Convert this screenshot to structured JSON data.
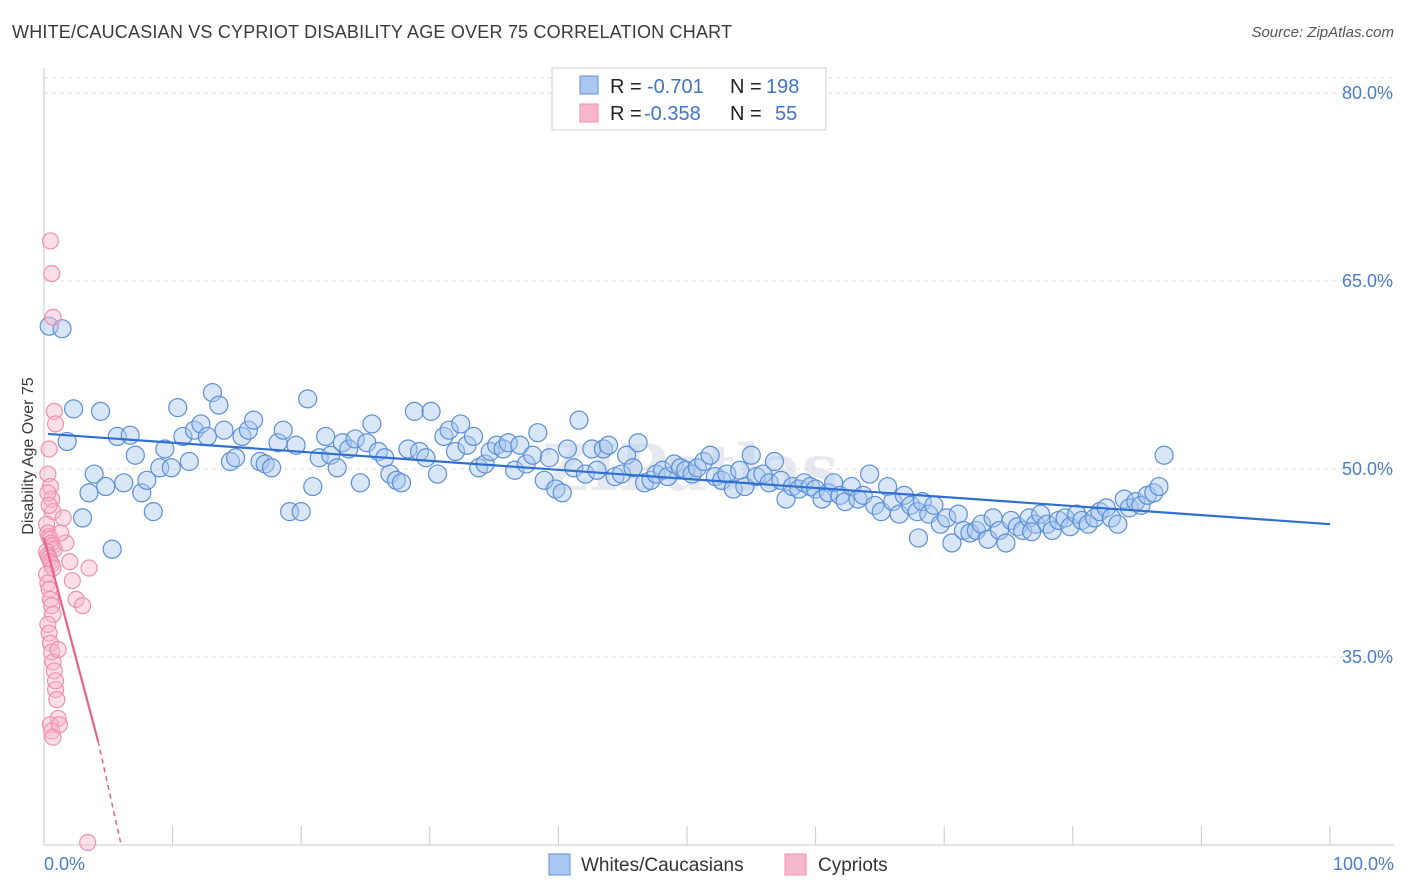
{
  "header": {
    "title": "WHITE/CAUCASIAN VS CYPRIOT DISABILITY AGE OVER 75 CORRELATION CHART",
    "source": "Source: ZipAtlas.com"
  },
  "watermark": "ZIPatlas",
  "chart_data": {
    "type": "scatter",
    "title": "WHITE/CAUCASIAN VS CYPRIOT DISABILITY AGE OVER 75 CORRELATION CHART",
    "xlabel": "",
    "ylabel": "Disability Age Over 75",
    "xlim": [
      0,
      100
    ],
    "ylim": [
      20,
      82
    ],
    "x_tick_labels": [
      {
        "value": 0,
        "label": "0.0%"
      },
      {
        "value": 100,
        "label": "100.0%"
      }
    ],
    "x_minor_ticks": [
      10,
      20,
      30,
      40,
      50,
      60,
      70,
      80,
      90,
      100
    ],
    "y_tick_labels": [
      {
        "value": 80,
        "label": "80.0%"
      },
      {
        "value": 65,
        "label": "65.0%"
      },
      {
        "value": 50,
        "label": "50.0%"
      },
      {
        "value": 35,
        "label": "35.0%"
      }
    ],
    "gridlines": [
      80,
      65,
      50,
      35
    ],
    "legend": {
      "position": "top-center",
      "entries": [
        {
          "series": "Whites/Caucasians",
          "r_label": "R =",
          "r_value": "-0.701",
          "n_label": "N =",
          "n_value": "198"
        },
        {
          "series": "Cypriots",
          "r_label": "R =",
          "r_value": "-0.358",
          "n_label": "N =",
          "n_value": "55"
        }
      ]
    },
    "colors": {
      "white_fill": "#a9c8f0",
      "white_stroke": "#5b8fd6",
      "white_line": "#2f6fd0",
      "cypriot_fill": "#f7b8cc",
      "cypriot_stroke": "#ef8fb0",
      "cypriot_line": "#e8608c",
      "tick_label": "#4a7cc7",
      "grid": "#dcdcdc"
    },
    "series": [
      {
        "name": "Whites/Caucasians",
        "trend": {
          "x1": 0.3,
          "y1": 52.8,
          "x2": 100,
          "y2": 45.6
        },
        "points": [
          [
            0.4,
            61.4
          ],
          [
            1.4,
            61.2
          ],
          [
            1.8,
            52.2
          ],
          [
            2.3,
            54.8
          ],
          [
            3.0,
            46.1
          ],
          [
            3.5,
            48.1
          ],
          [
            3.9,
            49.6
          ],
          [
            4.4,
            54.6
          ],
          [
            4.8,
            48.6
          ],
          [
            5.3,
            43.6
          ],
          [
            5.7,
            52.6
          ],
          [
            6.2,
            48.9
          ],
          [
            6.7,
            52.7
          ],
          [
            7.1,
            51.1
          ],
          [
            7.6,
            48.1
          ],
          [
            8.0,
            49.1
          ],
          [
            8.5,
            46.6
          ],
          [
            9.0,
            50.1
          ],
          [
            9.4,
            51.6
          ],
          [
            9.9,
            50.1
          ],
          [
            10.4,
            54.9
          ],
          [
            10.8,
            52.6
          ],
          [
            11.3,
            50.6
          ],
          [
            11.7,
            53.1
          ],
          [
            12.2,
            53.6
          ],
          [
            12.7,
            52.6
          ],
          [
            13.1,
            56.1
          ],
          [
            13.6,
            55.1
          ],
          [
            14.0,
            53.1
          ],
          [
            14.5,
            50.6
          ],
          [
            14.9,
            50.9
          ],
          [
            15.4,
            52.6
          ],
          [
            15.9,
            53.1
          ],
          [
            16.3,
            53.9
          ],
          [
            16.8,
            50.6
          ],
          [
            17.2,
            50.4
          ],
          [
            17.7,
            50.1
          ],
          [
            18.2,
            52.1
          ],
          [
            18.6,
            53.1
          ],
          [
            19.1,
            46.6
          ],
          [
            19.6,
            51.9
          ],
          [
            20.0,
            46.6
          ],
          [
            20.5,
            55.6
          ],
          [
            20.9,
            48.6
          ],
          [
            21.4,
            50.9
          ],
          [
            21.9,
            52.6
          ],
          [
            22.3,
            51.1
          ],
          [
            22.8,
            50.1
          ],
          [
            23.2,
            52.1
          ],
          [
            23.7,
            51.6
          ],
          [
            24.2,
            52.4
          ],
          [
            24.6,
            48.9
          ],
          [
            25.1,
            52.1
          ],
          [
            25.5,
            53.6
          ],
          [
            26.0,
            51.4
          ],
          [
            26.5,
            50.9
          ],
          [
            26.9,
            49.6
          ],
          [
            27.4,
            49.1
          ],
          [
            27.8,
            48.9
          ],
          [
            28.3,
            51.6
          ],
          [
            28.8,
            54.6
          ],
          [
            29.2,
            51.4
          ],
          [
            29.7,
            50.9
          ],
          [
            30.1,
            54.6
          ],
          [
            30.6,
            49.6
          ],
          [
            31.1,
            52.6
          ],
          [
            31.5,
            53.1
          ],
          [
            32.0,
            51.4
          ],
          [
            32.4,
            53.6
          ],
          [
            32.9,
            51.9
          ],
          [
            33.4,
            52.6
          ],
          [
            33.8,
            50.1
          ],
          [
            34.3,
            50.4
          ],
          [
            34.7,
            51.4
          ],
          [
            35.2,
            51.9
          ],
          [
            35.7,
            51.6
          ],
          [
            36.1,
            52.1
          ],
          [
            36.6,
            49.9
          ],
          [
            37.0,
            51.9
          ],
          [
            37.5,
            50.4
          ],
          [
            38.0,
            51.1
          ],
          [
            38.4,
            52.9
          ],
          [
            38.9,
            49.1
          ],
          [
            39.3,
            50.9
          ],
          [
            39.8,
            48.4
          ],
          [
            40.3,
            48.1
          ],
          [
            40.7,
            51.6
          ],
          [
            41.2,
            50.1
          ],
          [
            41.6,
            53.9
          ],
          [
            42.1,
            49.6
          ],
          [
            42.6,
            51.6
          ],
          [
            43.0,
            49.9
          ],
          [
            43.5,
            51.6
          ],
          [
            43.9,
            51.9
          ],
          [
            44.4,
            49.4
          ],
          [
            44.9,
            49.6
          ],
          [
            45.3,
            51.1
          ],
          [
            45.8,
            50.1
          ],
          [
            46.2,
            52.1
          ],
          [
            46.7,
            48.9
          ],
          [
            47.2,
            49.1
          ],
          [
            47.6,
            49.6
          ],
          [
            48.1,
            49.9
          ],
          [
            48.5,
            49.4
          ],
          [
            49.0,
            50.4
          ],
          [
            49.5,
            50.1
          ],
          [
            49.9,
            49.9
          ],
          [
            50.4,
            49.6
          ],
          [
            50.8,
            50.1
          ],
          [
            51.3,
            50.6
          ],
          [
            51.8,
            51.1
          ],
          [
            52.2,
            49.4
          ],
          [
            52.7,
            49.1
          ],
          [
            53.1,
            49.6
          ],
          [
            53.6,
            48.4
          ],
          [
            54.1,
            49.9
          ],
          [
            54.5,
            48.6
          ],
          [
            55.0,
            51.1
          ],
          [
            55.4,
            49.4
          ],
          [
            55.9,
            49.6
          ],
          [
            56.4,
            48.9
          ],
          [
            56.8,
            50.6
          ],
          [
            57.3,
            49.1
          ],
          [
            57.7,
            47.6
          ],
          [
            58.2,
            48.6
          ],
          [
            58.7,
            48.4
          ],
          [
            59.1,
            48.9
          ],
          [
            59.6,
            48.6
          ],
          [
            60.0,
            48.4
          ],
          [
            60.5,
            47.6
          ],
          [
            61.0,
            48.1
          ],
          [
            61.4,
            48.9
          ],
          [
            61.9,
            47.9
          ],
          [
            62.3,
            47.4
          ],
          [
            62.8,
            48.6
          ],
          [
            63.3,
            47.6
          ],
          [
            63.7,
            47.9
          ],
          [
            64.2,
            49.6
          ],
          [
            64.6,
            47.1
          ],
          [
            65.1,
            46.6
          ],
          [
            65.6,
            48.6
          ],
          [
            66.0,
            47.4
          ],
          [
            66.5,
            46.4
          ],
          [
            66.9,
            47.9
          ],
          [
            67.4,
            47.1
          ],
          [
            67.9,
            46.6
          ],
          [
            68.3,
            47.4
          ],
          [
            68.8,
            46.4
          ],
          [
            69.2,
            47.1
          ],
          [
            69.7,
            45.6
          ],
          [
            70.2,
            46.1
          ],
          [
            70.6,
            44.1
          ],
          [
            71.1,
            46.4
          ],
          [
            71.5,
            45.1
          ],
          [
            72.0,
            44.9
          ],
          [
            72.5,
            45.1
          ],
          [
            72.9,
            45.6
          ],
          [
            73.4,
            44.4
          ],
          [
            73.8,
            46.1
          ],
          [
            74.3,
            45.1
          ],
          [
            74.8,
            44.1
          ],
          [
            75.2,
            45.9
          ],
          [
            75.7,
            45.4
          ],
          [
            76.1,
            45.1
          ],
          [
            76.6,
            46.1
          ],
          [
            77.1,
            45.6
          ],
          [
            77.5,
            46.4
          ],
          [
            78.0,
            45.6
          ],
          [
            78.4,
            45.1
          ],
          [
            78.9,
            45.9
          ],
          [
            79.4,
            46.1
          ],
          [
            79.8,
            45.4
          ],
          [
            80.3,
            46.4
          ],
          [
            80.7,
            45.9
          ],
          [
            81.2,
            45.6
          ],
          [
            81.7,
            46.1
          ],
          [
            82.1,
            46.6
          ],
          [
            82.6,
            46.9
          ],
          [
            83.0,
            46.1
          ],
          [
            83.5,
            45.6
          ],
          [
            84.0,
            47.6
          ],
          [
            84.4,
            46.9
          ],
          [
            84.9,
            47.4
          ],
          [
            85.3,
            47.1
          ],
          [
            85.8,
            47.9
          ],
          [
            86.3,
            48.1
          ],
          [
            86.7,
            48.6
          ],
          [
            87.1,
            51.1
          ],
          [
            68.0,
            44.5
          ],
          [
            76.8,
            45.0
          ]
        ]
      },
      {
        "name": "Cypriots",
        "trend": {
          "x1": 0.0,
          "y1": 44.5,
          "x2": 4.2,
          "y2": 28.3,
          "dash_x2": 6.0,
          "dash_y2": 20.0
        },
        "points": [
          [
            0.5,
            68.2
          ],
          [
            0.6,
            65.6
          ],
          [
            0.7,
            62.1
          ],
          [
            0.8,
            54.6
          ],
          [
            0.9,
            53.6
          ],
          [
            0.4,
            51.6
          ],
          [
            0.3,
            49.6
          ],
          [
            0.5,
            48.6
          ],
          [
            0.6,
            47.6
          ],
          [
            0.7,
            46.6
          ],
          [
            0.2,
            45.6
          ],
          [
            0.3,
            44.9
          ],
          [
            0.4,
            44.6
          ],
          [
            0.5,
            44.4
          ],
          [
            0.6,
            44.1
          ],
          [
            0.7,
            43.9
          ],
          [
            0.8,
            43.6
          ],
          [
            0.2,
            43.4
          ],
          [
            0.3,
            43.1
          ],
          [
            0.4,
            42.9
          ],
          [
            0.5,
            42.6
          ],
          [
            0.6,
            42.4
          ],
          [
            0.7,
            42.1
          ],
          [
            0.2,
            41.6
          ],
          [
            0.3,
            40.9
          ],
          [
            0.4,
            40.4
          ],
          [
            0.5,
            39.6
          ],
          [
            0.6,
            39.1
          ],
          [
            0.7,
            38.4
          ],
          [
            0.3,
            37.6
          ],
          [
            0.4,
            36.9
          ],
          [
            0.5,
            36.1
          ],
          [
            0.6,
            35.4
          ],
          [
            0.7,
            34.6
          ],
          [
            0.8,
            33.9
          ],
          [
            0.9,
            32.4
          ],
          [
            1.0,
            31.6
          ],
          [
            1.1,
            30.1
          ],
          [
            0.5,
            29.6
          ],
          [
            0.6,
            29.1
          ],
          [
            0.7,
            28.6
          ],
          [
            1.2,
            29.6
          ],
          [
            1.5,
            46.1
          ],
          [
            1.7,
            44.1
          ],
          [
            2.0,
            42.6
          ],
          [
            2.2,
            41.1
          ],
          [
            2.5,
            39.6
          ],
          [
            3.0,
            39.1
          ],
          [
            3.5,
            42.1
          ],
          [
            0.3,
            48.1
          ],
          [
            0.4,
            47.1
          ],
          [
            1.3,
            44.9
          ],
          [
            1.1,
            35.6
          ],
          [
            0.9,
            33.1
          ],
          [
            3.4,
            20.2
          ]
        ]
      }
    ]
  },
  "bottom_legend": {
    "items": [
      {
        "label": "Whites/Caucasians"
      },
      {
        "label": "Cypriots"
      }
    ]
  }
}
